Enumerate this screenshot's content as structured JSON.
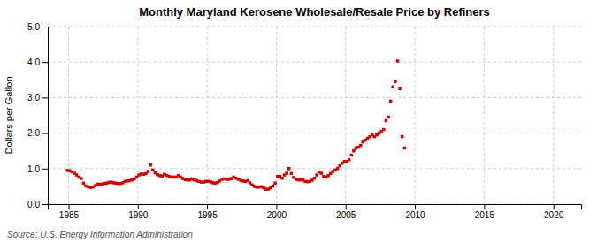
{
  "chart_data": {
    "type": "scatter",
    "title": "Monthly Maryland Kerosene Wholesale/Resale Price by Refiners",
    "y_label": "Dollars per Gallon",
    "annotations": [
      "Source: U.S. Energy Information Administration"
    ],
    "color": "#cc0000",
    "marker": "square",
    "grid": true,
    "xlim": [
      1983.5,
      2022
    ],
    "ylim": [
      0.0,
      5.0
    ],
    "xticks": [
      1985,
      1990,
      1995,
      2000,
      2005,
      2010,
      2015,
      2020
    ],
    "yticks": [
      {
        "value": 0.0,
        "label": "0.0"
      },
      {
        "value": 1.0,
        "label": "1.0"
      },
      {
        "value": 2.0,
        "label": "2.0"
      },
      {
        "value": 3.0,
        "label": "3.0"
      },
      {
        "value": 4.0,
        "label": "4.0"
      },
      {
        "value": 5.0,
        "label": "5.0"
      }
    ],
    "x": [
      1984.917,
      1985.083,
      1985.25,
      1985.417,
      1985.583,
      1985.75,
      1985.917,
      1986.083,
      1986.25,
      1986.417,
      1986.583,
      1986.75,
      1986.917,
      1987.083,
      1987.25,
      1987.417,
      1987.583,
      1987.75,
      1987.917,
      1988.083,
      1988.25,
      1988.417,
      1988.583,
      1988.75,
      1988.917,
      1989.083,
      1989.25,
      1989.417,
      1989.583,
      1989.75,
      1989.917,
      1990.083,
      1990.25,
      1990.417,
      1990.583,
      1990.75,
      1990.917,
      1991.083,
      1991.25,
      1991.417,
      1991.583,
      1991.75,
      1991.917,
      1992.083,
      1992.25,
      1992.417,
      1992.583,
      1992.75,
      1992.917,
      1993.083,
      1993.25,
      1993.417,
      1993.583,
      1993.75,
      1993.917,
      1994.083,
      1994.25,
      1994.417,
      1994.583,
      1994.75,
      1994.917,
      1995.083,
      1995.25,
      1995.417,
      1995.583,
      1995.75,
      1995.917,
      1996.083,
      1996.25,
      1996.417,
      1996.583,
      1996.75,
      1996.917,
      1997.083,
      1997.25,
      1997.417,
      1997.583,
      1997.75,
      1997.917,
      1998.083,
      1998.25,
      1998.417,
      1998.583,
      1998.75,
      1998.917,
      1999.083,
      1999.25,
      1999.417,
      1999.583,
      1999.75,
      1999.917,
      2000.083,
      2000.25,
      2000.417,
      2000.583,
      2000.75,
      2000.917,
      2001.083,
      2001.25,
      2001.417,
      2001.583,
      2001.75,
      2001.917,
      2002.083,
      2002.25,
      2002.417,
      2002.583,
      2002.75,
      2002.917,
      2003.083,
      2003.25,
      2003.417,
      2003.583,
      2003.75,
      2003.917,
      2004.083,
      2004.25,
      2004.417,
      2004.583,
      2004.75,
      2004.917,
      2005.083,
      2005.25,
      2005.417,
      2005.583,
      2005.75,
      2005.917,
      2006.083,
      2006.25,
      2006.417,
      2006.583,
      2006.75,
      2006.917,
      2007.083,
      2007.25,
      2007.417,
      2007.583,
      2007.75,
      2007.917,
      2008.083,
      2008.25,
      2008.417,
      2008.583,
      2008.75,
      2008.917,
      2009.083,
      2009.25
    ],
    "values": [
      0.95,
      0.94,
      0.91,
      0.87,
      0.82,
      0.76,
      0.72,
      0.59,
      0.51,
      0.49,
      0.47,
      0.48,
      0.52,
      0.56,
      0.56,
      0.56,
      0.58,
      0.59,
      0.61,
      0.62,
      0.6,
      0.59,
      0.58,
      0.58,
      0.6,
      0.64,
      0.65,
      0.66,
      0.68,
      0.71,
      0.76,
      0.82,
      0.85,
      0.84,
      0.86,
      0.92,
      1.1,
      0.96,
      0.88,
      0.83,
      0.8,
      0.79,
      0.84,
      0.81,
      0.78,
      0.76,
      0.76,
      0.76,
      0.8,
      0.76,
      0.72,
      0.69,
      0.68,
      0.68,
      0.71,
      0.68,
      0.66,
      0.64,
      0.62,
      0.62,
      0.64,
      0.64,
      0.63,
      0.6,
      0.59,
      0.61,
      0.65,
      0.7,
      0.71,
      0.7,
      0.7,
      0.72,
      0.76,
      0.73,
      0.7,
      0.67,
      0.65,
      0.64,
      0.66,
      0.6,
      0.54,
      0.5,
      0.48,
      0.48,
      0.49,
      0.46,
      0.42,
      0.42,
      0.46,
      0.51,
      0.59,
      0.78,
      0.78,
      0.73,
      0.82,
      0.87,
      1.0,
      0.86,
      0.75,
      0.7,
      0.68,
      0.68,
      0.68,
      0.64,
      0.63,
      0.64,
      0.67,
      0.73,
      0.82,
      0.9,
      0.87,
      0.78,
      0.76,
      0.8,
      0.86,
      0.92,
      0.96,
      1.0,
      1.08,
      1.15,
      1.2,
      1.2,
      1.25,
      1.38,
      1.5,
      1.58,
      1.6,
      1.65,
      1.75,
      1.8,
      1.85,
      1.9,
      1.95,
      1.9,
      1.95,
      2.0,
      2.05,
      2.1,
      2.35,
      2.45,
      2.9,
      3.3,
      3.45,
      4.03,
      3.25,
      1.9,
      1.58
    ]
  }
}
